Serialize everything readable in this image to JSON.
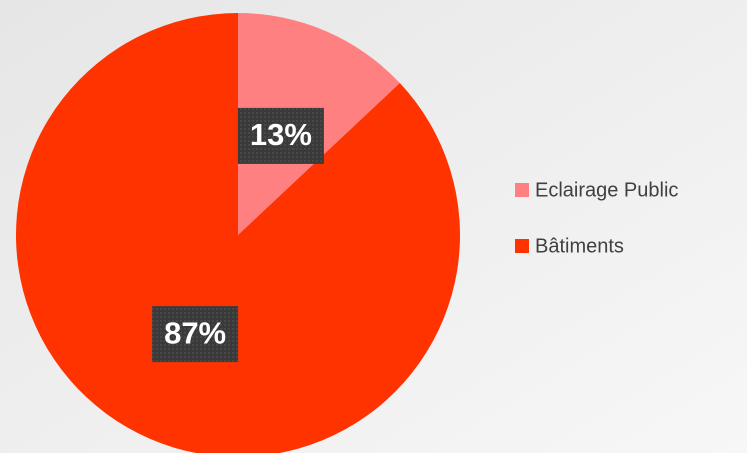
{
  "chart_data": {
    "type": "pie",
    "categories": [
      "Eclairage Public",
      "Bâtiments"
    ],
    "values": [
      13,
      87
    ],
    "value_labels": [
      "13%",
      "87%"
    ],
    "colors": [
      "#ff8080",
      "#ff3300"
    ],
    "legend": "right"
  }
}
